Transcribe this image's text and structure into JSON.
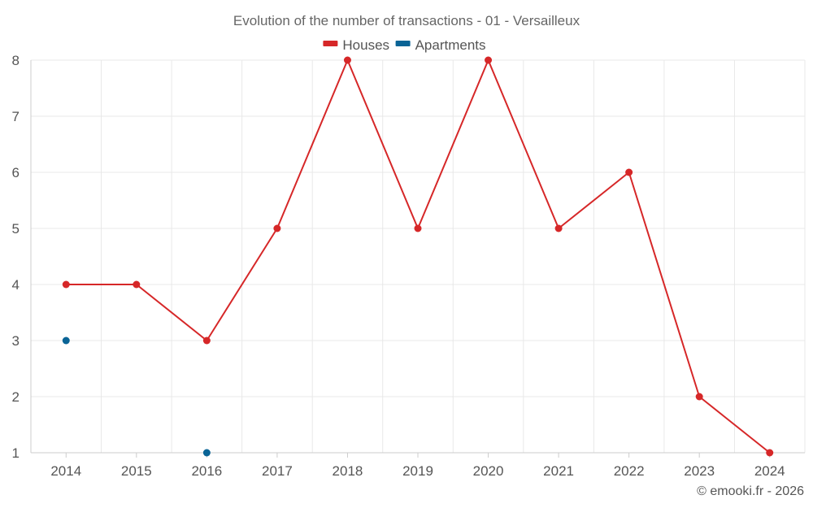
{
  "chart_data": {
    "type": "line",
    "title": "Evolution of the number of transactions - 01 - Versailleux",
    "categories": [
      "2014",
      "2015",
      "2016",
      "2017",
      "2018",
      "2019",
      "2020",
      "2021",
      "2022",
      "2023",
      "2024"
    ],
    "series": [
      {
        "name": "Houses",
        "color": "#d62728",
        "values": [
          4,
          4,
          3,
          5,
          8,
          5,
          8,
          5,
          6,
          2,
          1
        ]
      },
      {
        "name": "Apartments",
        "color": "#0a6496",
        "values": [
          3,
          null,
          1,
          null,
          null,
          null,
          null,
          null,
          null,
          null,
          null
        ]
      }
    ],
    "y_ticks": [
      "1",
      "2",
      "3",
      "4",
      "5",
      "6",
      "7",
      "8"
    ],
    "ylim": [
      1,
      8
    ],
    "grid": true,
    "legend_position": "top-center",
    "credit": "© emooki.fr - 2026"
  }
}
